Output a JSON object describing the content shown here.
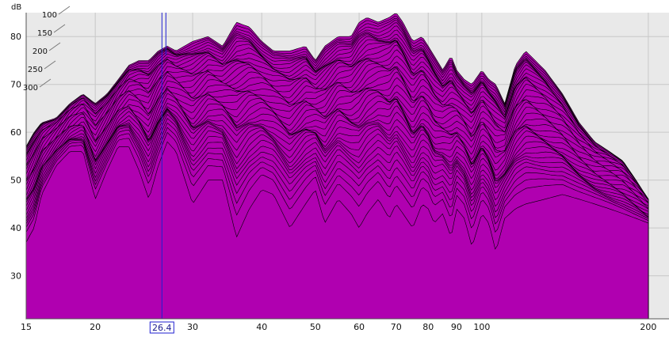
{
  "chart_data": {
    "type": "area",
    "ylabel": "dB",
    "y_unit": "dB",
    "ylim": [
      21,
      85
    ],
    "y_ticks": [
      "30",
      "40",
      "50",
      "60",
      "70",
      "80"
    ],
    "xlim": [
      15,
      218
    ],
    "x_scale": "log",
    "x_ticks": [
      "15",
      "20",
      "30",
      "40",
      "50",
      "60",
      "70",
      "80",
      "90",
      "100",
      "200"
    ],
    "grid": true,
    "depth_labels": [
      "100",
      "150",
      "200",
      "250",
      "300"
    ],
    "cursor": {
      "x": 26.4,
      "label": "26.4"
    },
    "colors": {
      "fill": "#b000b0",
      "outline": "#000000",
      "cursor": "#1f1fd0",
      "plot_background": "#e9e9e9",
      "grid": "#c8c8c8"
    },
    "series": [
      {
        "x": [
          15,
          15.5,
          16,
          17,
          18,
          19,
          20,
          21,
          22,
          23,
          24,
          25,
          26,
          27,
          28,
          30,
          32,
          34,
          36,
          38,
          40,
          42,
          45,
          48,
          50,
          52,
          55,
          58,
          60,
          62,
          65,
          68,
          70,
          72,
          75,
          78,
          80,
          82,
          85,
          88,
          90,
          93,
          96,
          100,
          103,
          106,
          110,
          115,
          120,
          130,
          140,
          150,
          160,
          170,
          180,
          190,
          200
        ],
        "values": [
          37,
          40,
          47,
          53,
          56,
          56,
          46,
          52,
          57,
          57,
          52,
          46,
          53,
          58,
          56,
          45,
          50,
          50,
          38,
          44,
          48,
          47,
          40,
          45,
          48,
          41,
          46,
          43,
          40,
          43,
          46,
          42,
          45,
          43,
          40,
          45,
          44,
          41,
          43,
          38,
          44,
          42,
          36,
          43,
          41,
          35,
          42,
          44,
          45,
          46,
          47,
          46,
          45,
          44,
          43,
          42,
          41
        ]
      },
      {
        "x": [
          15,
          15.5,
          16,
          17,
          18,
          19,
          20,
          21,
          22,
          23,
          24,
          25,
          26,
          27,
          28,
          30,
          32,
          34,
          36,
          38,
          40,
          42,
          45,
          48,
          50,
          52,
          55,
          58,
          60,
          62,
          65,
          68,
          70,
          72,
          75,
          78,
          80,
          82,
          85,
          88,
          90,
          93,
          96,
          100,
          103,
          106,
          110,
          115,
          120,
          130,
          140,
          150,
          160,
          170,
          180,
          190,
          200
        ],
        "values": [
          57,
          60,
          62,
          63,
          66,
          68,
          66,
          68,
          71,
          74,
          75,
          75,
          77,
          78,
          77,
          79,
          80,
          78,
          83,
          82,
          79,
          77,
          77,
          78,
          75,
          78,
          80,
          80,
          83,
          84,
          83,
          84,
          85,
          83,
          79,
          80,
          78,
          76,
          73,
          76,
          73,
          71,
          70,
          73,
          71,
          70,
          66,
          74,
          77,
          73,
          68,
          62,
          58,
          56,
          54,
          50,
          46
        ]
      }
    ]
  }
}
